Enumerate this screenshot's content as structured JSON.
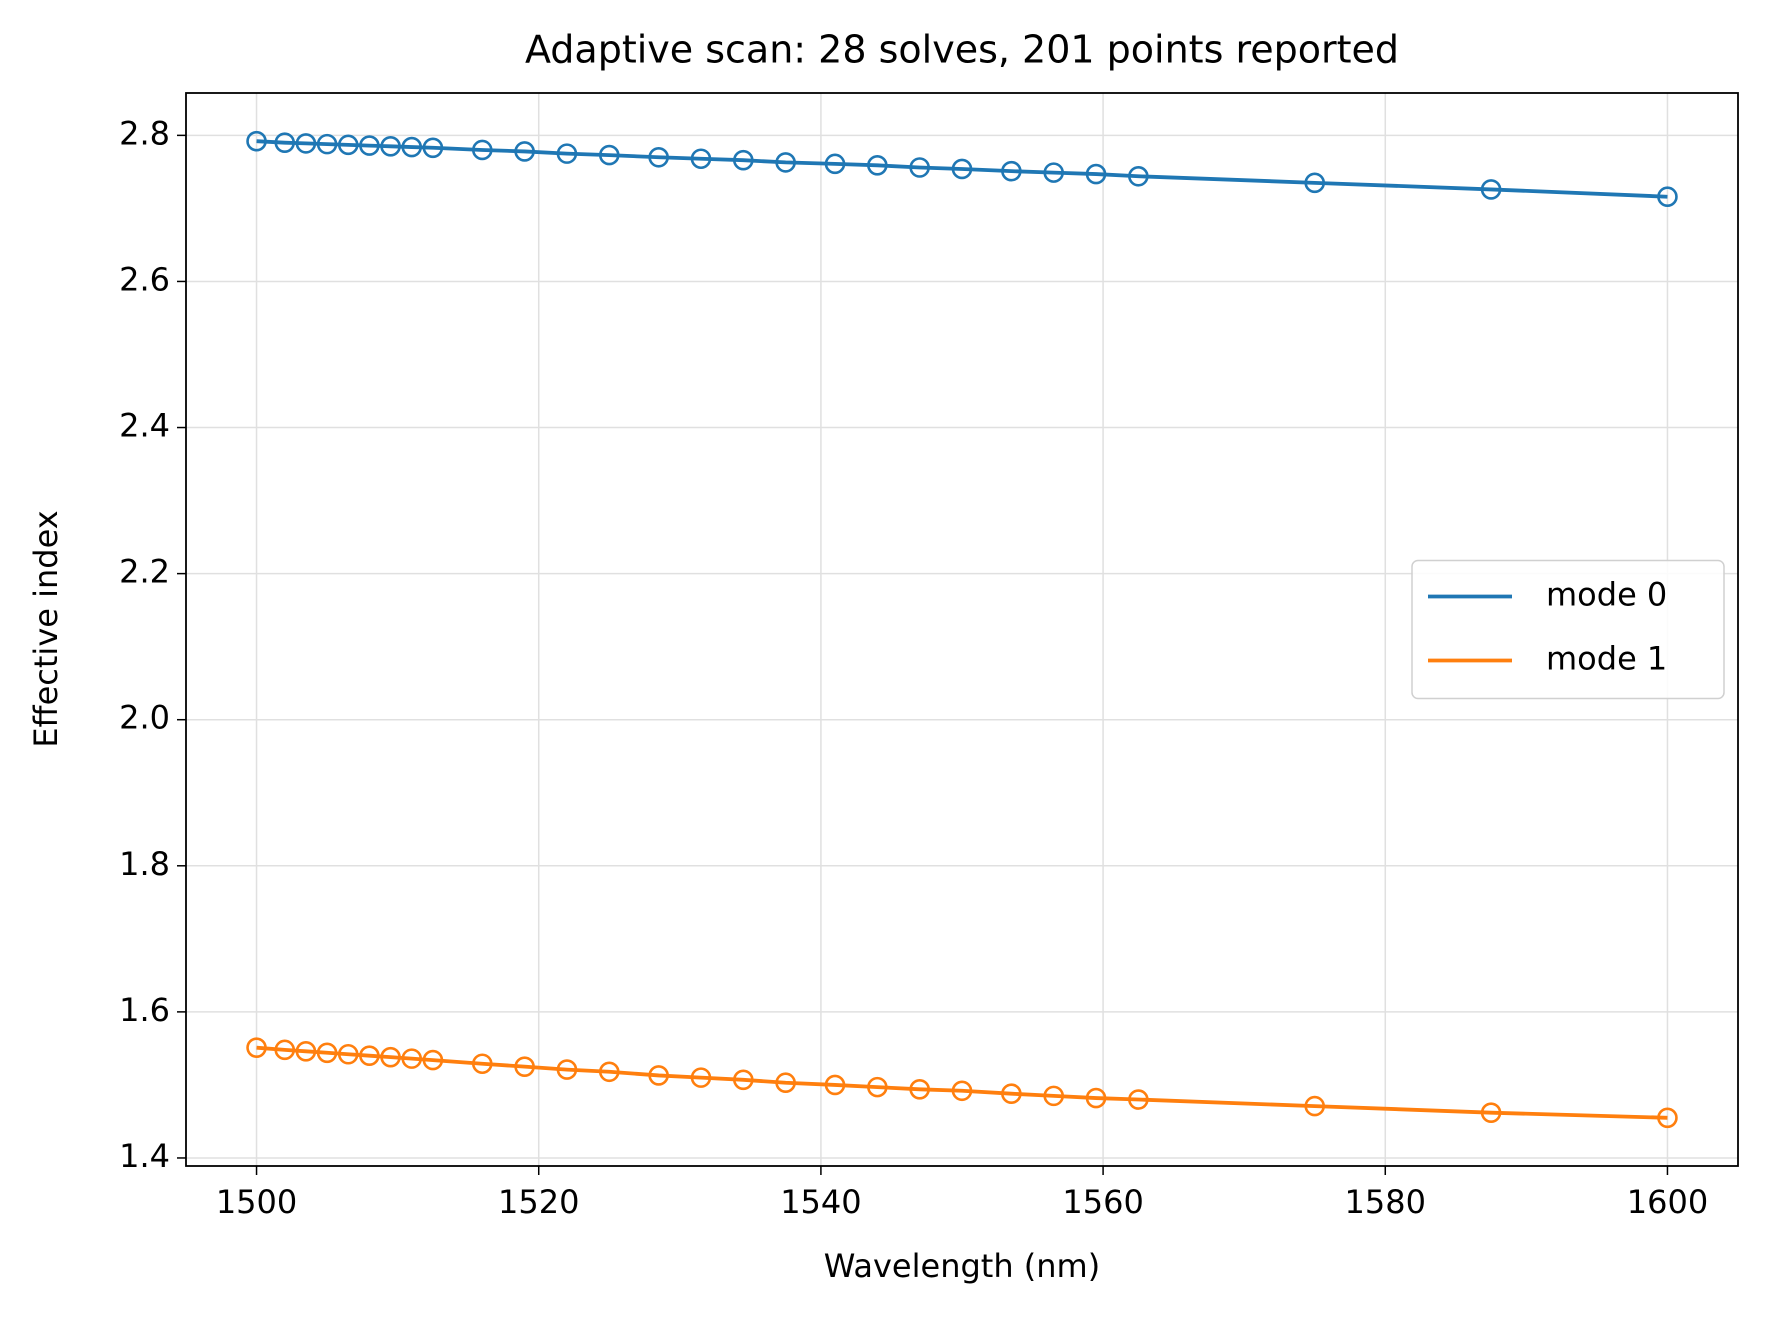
{
  "chart_data": {
    "type": "line",
    "title": "Adaptive scan: 28 solves, 201 points reported",
    "x_label": "Wavelength (nm)",
    "y_label": "Effective index",
    "x": [
      1500,
      1502,
      1503.5,
      1505,
      1506.5,
      1508,
      1509.5,
      1511,
      1512.5,
      1516,
      1519,
      1522,
      1525,
      1528.5,
      1531.5,
      1534.5,
      1537.5,
      1541,
      1544,
      1547,
      1550,
      1553.5,
      1556.5,
      1559.5,
      1562.5,
      1575,
      1587.5,
      1600
    ],
    "series": [
      {
        "name": "mode 0",
        "color": "#1f77b4",
        "values": [
          2.792,
          2.79,
          2.789,
          2.788,
          2.787,
          2.786,
          2.785,
          2.784,
          2.783,
          2.78,
          2.778,
          2.775,
          2.773,
          2.77,
          2.768,
          2.766,
          2.763,
          2.761,
          2.759,
          2.756,
          2.754,
          2.751,
          2.749,
          2.747,
          2.744,
          2.735,
          2.726,
          2.716
        ]
      },
      {
        "name": "mode 1",
        "color": "#ff7f0e",
        "values": [
          1.551,
          1.548,
          1.546,
          1.544,
          1.542,
          1.54,
          1.538,
          1.536,
          1.534,
          1.529,
          1.525,
          1.521,
          1.518,
          1.513,
          1.51,
          1.507,
          1.503,
          1.5,
          1.497,
          1.494,
          1.492,
          1.488,
          1.485,
          1.482,
          1.48,
          1.471,
          1.462,
          1.455
        ]
      }
    ],
    "xlim": [
      1495,
      1605
    ],
    "ylim": [
      1.389,
      2.858
    ],
    "xticks": [
      1500,
      1520,
      1540,
      1560,
      1580,
      1600
    ],
    "yticks": [
      1.4,
      1.6,
      1.8,
      {
        "value": 2,
        "label": "2.0"
      },
      2.2,
      2.4,
      2.6,
      2.8
    ],
    "grid": true,
    "legend": "center right"
  }
}
